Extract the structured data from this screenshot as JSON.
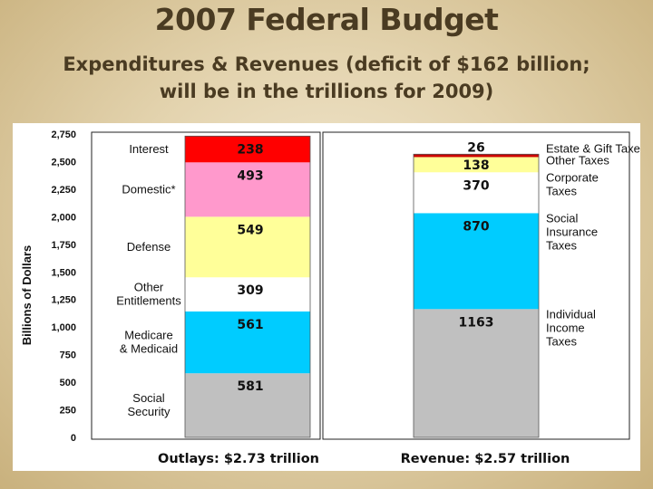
{
  "title": "2007 Federal Budget",
  "subtitle_line1": "Expenditures & Revenues (deficit of $162 billion;",
  "subtitle_line2": "will be in the trillions for 2009)",
  "chart_data": {
    "type": "stacked-bar",
    "ylabel": "Billions of Dollars",
    "ylim": [
      0,
      2750
    ],
    "yticks": [
      "0",
      "250",
      "500",
      "750",
      "1,000",
      "1,250",
      "1,500",
      "1,750",
      "2,000",
      "2,250",
      "2,500",
      "2,750"
    ],
    "ytick_values": [
      0,
      250,
      500,
      750,
      1000,
      1250,
      1500,
      1750,
      2000,
      2250,
      2500,
      2750
    ],
    "outlays": {
      "caption": "Outlays: $2.73 trillion",
      "segments": [
        {
          "label": "Social\nSecurity",
          "value": 581,
          "color": "#c0c0c0"
        },
        {
          "label": "Medicare\n& Medicaid",
          "value": 561,
          "color": "#00ccff"
        },
        {
          "label": "Other\nEntitlements",
          "value": 309,
          "color": "#ffffff"
        },
        {
          "label": "Defense",
          "value": 549,
          "color": "#ffff99"
        },
        {
          "label": "Domestic*",
          "value": 493,
          "color": "#ff99cc"
        },
        {
          "label": "Interest",
          "value": 238,
          "color": "#ff0000"
        }
      ]
    },
    "revenue": {
      "caption": "Revenue: $2.57 trillion",
      "segments": [
        {
          "label": "Individual\nIncome\nTaxes",
          "value": 1163,
          "color": "#c0c0c0"
        },
        {
          "label": "Social\nInsurance\nTaxes",
          "value": 870,
          "color": "#00ccff"
        },
        {
          "label": "Corporate\nTaxes",
          "value": 370,
          "color": "#ffffff"
        },
        {
          "label": "Other Taxes",
          "value": 138,
          "color": "#ffff99"
        },
        {
          "label": "Estate & Gift Taxes",
          "value": 26,
          "color": "#cc0000"
        }
      ]
    }
  }
}
